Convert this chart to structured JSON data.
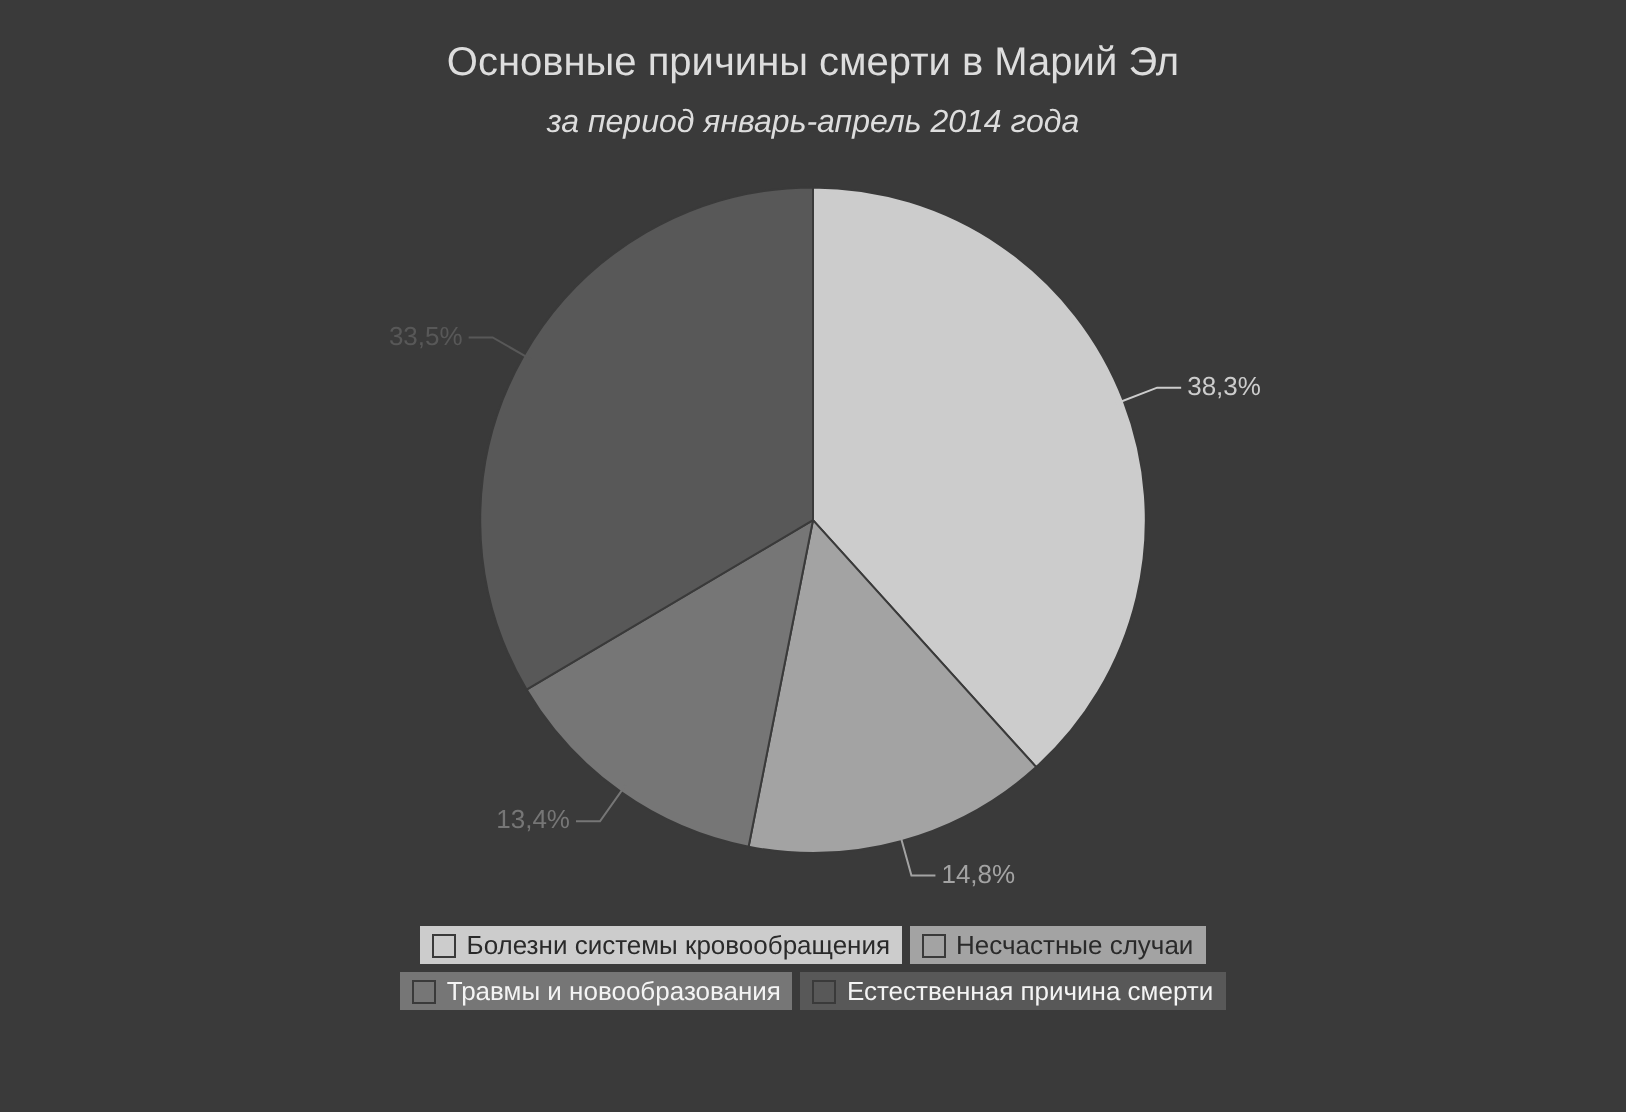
{
  "chart_data": {
    "type": "pie",
    "title": "Основные причины смерти в Марий Эл",
    "subtitle": "за период январь-апрель 2014 года",
    "categories": [
      "Болезни системы кровообращения",
      "Несчастные случаи",
      "Травмы и новообразования",
      "Естественная причина смерти"
    ],
    "values": [
      38.3,
      14.8,
      13.4,
      33.5
    ],
    "value_labels": [
      "38,3%",
      "14,8%",
      "13,4%",
      "33,5%"
    ],
    "colors": [
      "#cccccc",
      "#a3a3a3",
      "#767676",
      "#585858"
    ],
    "legend": "bottom"
  }
}
